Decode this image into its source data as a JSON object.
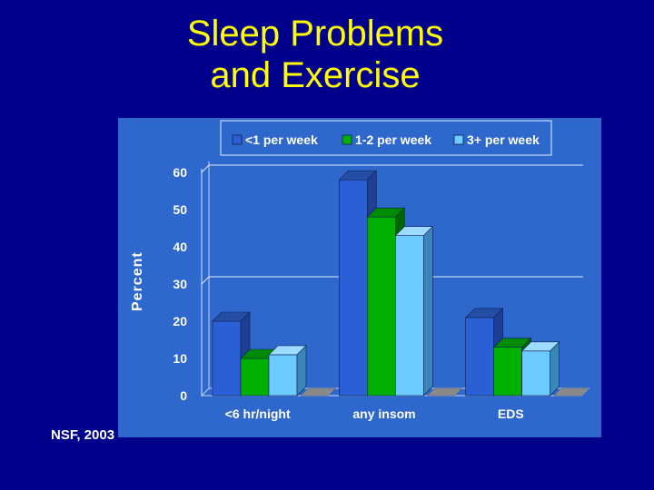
{
  "slide": {
    "title_line1": "Sleep Problems",
    "title_line2": "and Exercise",
    "source": "NSF, 2003"
  },
  "colors": {
    "background": "#00008b",
    "title": "#ffff00",
    "panel": "#2f68cc"
  },
  "chart_data": {
    "type": "bar",
    "title": "",
    "xlabel": "",
    "ylabel": "Percent",
    "categories": [
      "<6 hr/night",
      "any insom",
      "EDS"
    ],
    "ylim": [
      0,
      60
    ],
    "yticks": [
      "0",
      "10",
      "20",
      "30",
      "40",
      "50",
      "60"
    ],
    "grid": false,
    "legend_position": "top",
    "series": [
      {
        "name": "<1 per week",
        "values": [
          20,
          58,
          21
        ],
        "color": "#2b5fd6",
        "side": "#1d3f94",
        "top": "#244ea6"
      },
      {
        "name": "1-2 per week",
        "values": [
          10,
          48,
          13
        ],
        "color": "#00b000",
        "side": "#006400",
        "top": "#008a00"
      },
      {
        "name": "3+ per week",
        "values": [
          11,
          43,
          12
        ],
        "color": "#6ecbff",
        "side": "#3b86b8",
        "top": "#9edcff"
      }
    ]
  }
}
